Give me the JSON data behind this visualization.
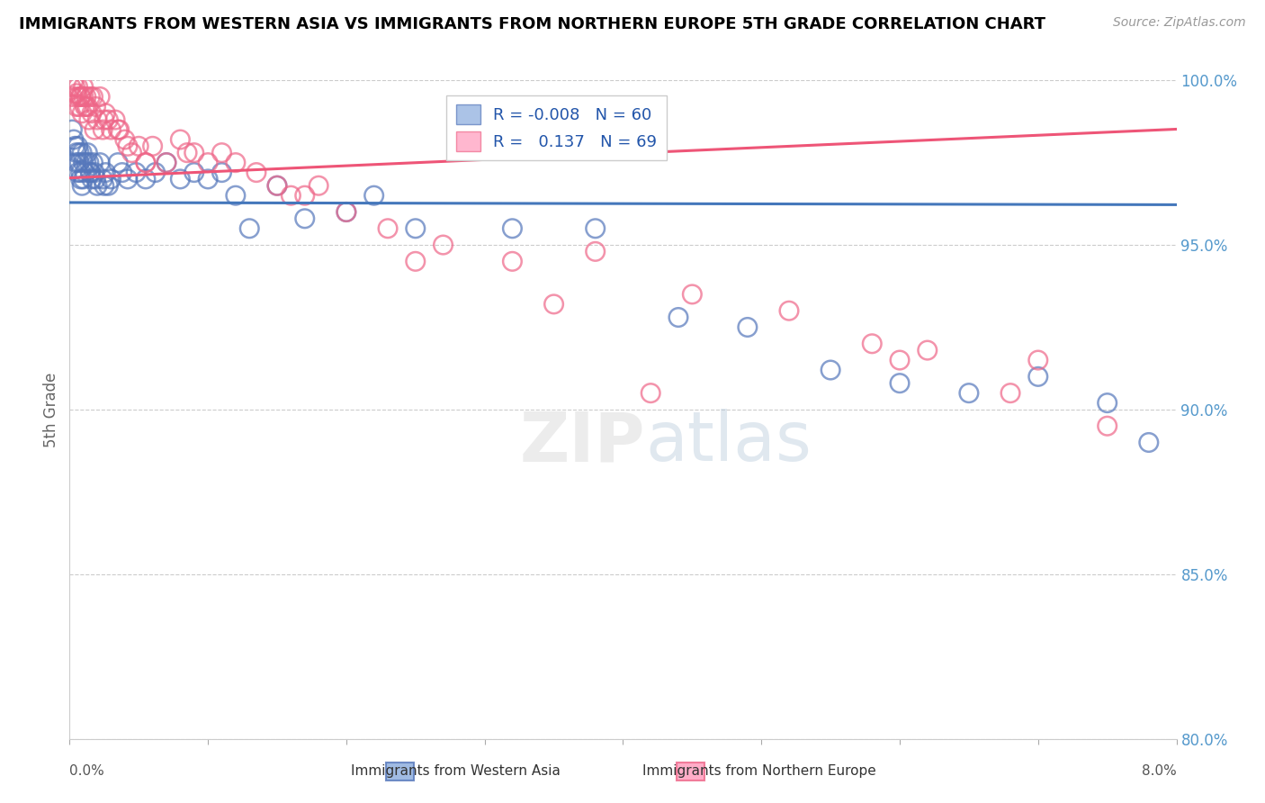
{
  "title": "IMMIGRANTS FROM WESTERN ASIA VS IMMIGRANTS FROM NORTHERN EUROPE 5TH GRADE CORRELATION CHART",
  "source": "Source: ZipAtlas.com",
  "xlabel_blue": "Immigrants from Western Asia",
  "xlabel_pink": "Immigrants from Northern Europe",
  "ylabel": "5th Grade",
  "xlim": [
    0.0,
    8.0
  ],
  "ylim": [
    80.0,
    100.0
  ],
  "yticks": [
    80.0,
    85.0,
    90.0,
    95.0,
    100.0
  ],
  "R_blue": -0.008,
  "N_blue": 60,
  "R_pink": 0.137,
  "N_pink": 69,
  "blue_color": "#88AADD",
  "pink_color": "#FF99BB",
  "blue_edge_color": "#5577BB",
  "pink_edge_color": "#EE6688",
  "blue_line_color": "#4477BB",
  "pink_line_color": "#EE5577",
  "watermark_zip": "ZIP",
  "watermark_atlas": "atlas",
  "blue_x": [
    0.02,
    0.03,
    0.04,
    0.05,
    0.05,
    0.06,
    0.06,
    0.07,
    0.07,
    0.08,
    0.08,
    0.09,
    0.09,
    0.1,
    0.1,
    0.11,
    0.12,
    0.13,
    0.14,
    0.15,
    0.16,
    0.17,
    0.18,
    0.19,
    0.2,
    0.22,
    0.24,
    0.26,
    0.28,
    0.3,
    0.35,
    0.38,
    0.42,
    0.48,
    0.55,
    0.62,
    0.7,
    0.8,
    0.9,
    1.0,
    1.1,
    1.2,
    1.3,
    1.5,
    1.7,
    2.0,
    2.2,
    2.5,
    3.2,
    3.8,
    4.4,
    4.9,
    5.5,
    6.0,
    6.5,
    7.0,
    7.5,
    7.8,
    0.15,
    0.25
  ],
  "blue_y": [
    98.5,
    98.2,
    98.0,
    97.8,
    97.5,
    97.2,
    98.0,
    97.5,
    97.8,
    97.2,
    97.0,
    97.8,
    96.8,
    97.5,
    97.0,
    97.2,
    97.5,
    97.8,
    97.5,
    97.2,
    97.0,
    97.5,
    97.2,
    97.0,
    96.8,
    97.5,
    97.0,
    97.2,
    96.8,
    97.0,
    97.5,
    97.2,
    97.0,
    97.2,
    97.0,
    97.2,
    97.5,
    97.0,
    97.2,
    97.0,
    97.2,
    96.5,
    95.5,
    96.8,
    95.8,
    96.0,
    96.5,
    95.5,
    95.5,
    95.5,
    92.8,
    92.5,
    91.2,
    90.8,
    90.5,
    91.0,
    90.2,
    89.0,
    97.2,
    96.8
  ],
  "pink_x": [
    0.01,
    0.02,
    0.03,
    0.04,
    0.05,
    0.05,
    0.06,
    0.06,
    0.07,
    0.08,
    0.09,
    0.1,
    0.1,
    0.11,
    0.12,
    0.13,
    0.14,
    0.15,
    0.16,
    0.17,
    0.18,
    0.19,
    0.2,
    0.22,
    0.24,
    0.26,
    0.28,
    0.3,
    0.33,
    0.36,
    0.4,
    0.45,
    0.5,
    0.55,
    0.6,
    0.7,
    0.8,
    0.9,
    1.0,
    1.1,
    1.2,
    1.35,
    1.5,
    1.7,
    2.0,
    2.3,
    2.7,
    3.2,
    3.8,
    4.5,
    5.2,
    6.0,
    6.8,
    7.5,
    0.35,
    0.55,
    0.85,
    1.6,
    2.5,
    4.2,
    5.8,
    7.0,
    0.12,
    0.25,
    0.42,
    1.8,
    3.5,
    6.2,
    0.08
  ],
  "pink_y": [
    99.8,
    99.5,
    100.0,
    99.8,
    99.6,
    99.2,
    99.8,
    99.5,
    99.2,
    99.5,
    99.0,
    99.5,
    99.8,
    99.2,
    99.5,
    99.2,
    98.8,
    99.5,
    99.0,
    99.5,
    98.5,
    99.2,
    98.8,
    99.5,
    98.5,
    99.0,
    98.8,
    98.5,
    98.8,
    98.5,
    98.2,
    97.8,
    98.0,
    97.5,
    98.0,
    97.5,
    98.2,
    97.8,
    97.5,
    97.8,
    97.5,
    97.2,
    96.8,
    96.5,
    96.0,
    95.5,
    95.0,
    94.5,
    94.8,
    93.5,
    93.0,
    91.5,
    90.5,
    89.5,
    98.5,
    97.5,
    97.8,
    96.5,
    94.5,
    90.5,
    92.0,
    91.5,
    99.2,
    98.8,
    98.0,
    96.8,
    93.2,
    91.8,
    99.5
  ]
}
